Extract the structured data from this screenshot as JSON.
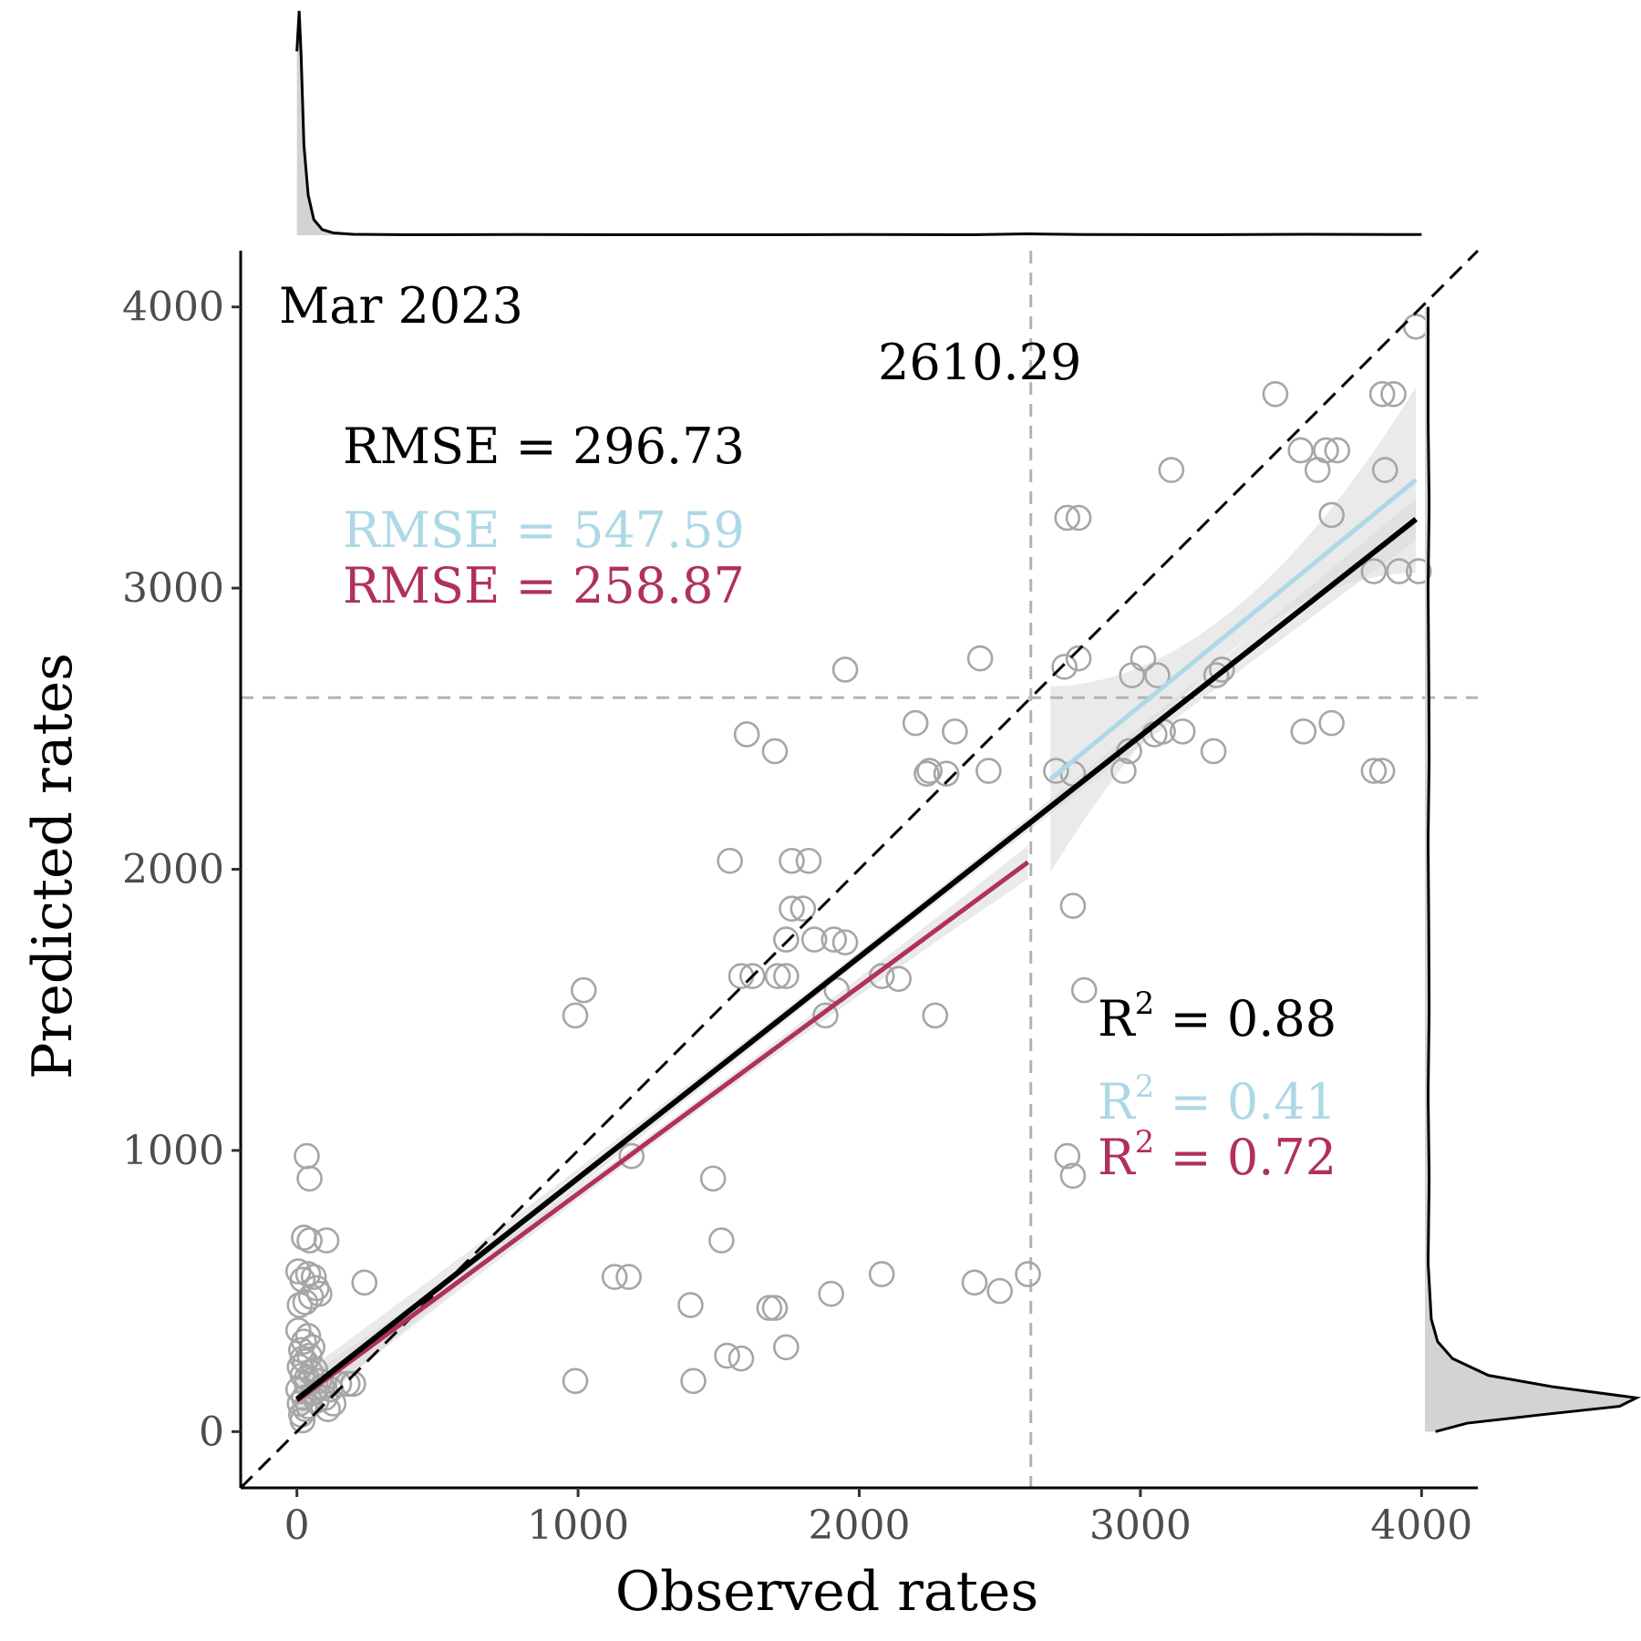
{
  "chart_data": {
    "type": "scatter",
    "period_label": "Mar 2023",
    "xlabel": "Observed rates",
    "ylabel": "Predicted rates",
    "xlim": [
      -200,
      4200
    ],
    "ylim": [
      -200,
      4200
    ],
    "xticks": [
      0,
      1000,
      2000,
      3000,
      4000
    ],
    "yticks": [
      0,
      1000,
      2000,
      3000,
      4000
    ],
    "threshold": {
      "value": 2610.29,
      "label": "2610.29"
    },
    "identity_line": {
      "style": "dashed",
      "color": "#000000"
    },
    "fits": [
      {
        "color": "#000000",
        "rmse_label": "RMSE = 296.73",
        "r2_label": "R",
        "r2_value": " = 0.88",
        "x": [
          0,
          3980
        ],
        "y": [
          115,
          3245
        ]
      },
      {
        "color": "#add8e6",
        "rmse_label": "RMSE = 547.59",
        "r2_label": "R",
        "r2_value": " = 0.41",
        "x": [
          2680,
          3980
        ],
        "y": [
          2320,
          3385
        ]
      },
      {
        "color": "#b03060",
        "rmse_label": "RMSE = 258.87",
        "r2_label": "R",
        "r2_value": " = 0.72",
        "x": [
          0,
          2600
        ],
        "y": [
          110,
          2025
        ]
      }
    ],
    "r2_superscript": "2",
    "grid": false,
    "marginal_density": {
      "top": "observed",
      "right": "predicted"
    },
    "point_color": "#a6a6a6",
    "points": [
      [
        20,
        40
      ],
      [
        15,
        60
      ],
      [
        30,
        80
      ],
      [
        10,
        100
      ],
      [
        25,
        120
      ],
      [
        40,
        90
      ],
      [
        5,
        150
      ],
      [
        35,
        170
      ],
      [
        20,
        200
      ],
      [
        50,
        210
      ],
      [
        10,
        230
      ],
      [
        30,
        250
      ],
      [
        45,
        270
      ],
      [
        15,
        290
      ],
      [
        60,
        140
      ],
      [
        70,
        110
      ],
      [
        80,
        180
      ],
      [
        55,
        300
      ],
      [
        25,
        320
      ],
      [
        40,
        340
      ],
      [
        5,
        360
      ],
      [
        35,
        190
      ],
      [
        65,
        220
      ],
      [
        20,
        260
      ],
      [
        90,
        160
      ],
      [
        100,
        120
      ],
      [
        110,
        80
      ],
      [
        120,
        150
      ],
      [
        130,
        100
      ],
      [
        150,
        170
      ],
      [
        180,
        170
      ],
      [
        200,
        170
      ],
      [
        10,
        450
      ],
      [
        30,
        460
      ],
      [
        50,
        480
      ],
      [
        70,
        510
      ],
      [
        20,
        540
      ],
      [
        40,
        560
      ],
      [
        60,
        550
      ],
      [
        80,
        490
      ],
      [
        5,
        570
      ],
      [
        25,
        690
      ],
      [
        45,
        680
      ],
      [
        105,
        680
      ],
      [
        35,
        980
      ],
      [
        45,
        900
      ],
      [
        240,
        530
      ],
      [
        990,
        180
      ],
      [
        1410,
        180
      ],
      [
        1530,
        270
      ],
      [
        1580,
        260
      ],
      [
        1740,
        300
      ],
      [
        1400,
        450
      ],
      [
        1680,
        440
      ],
      [
        1700,
        440
      ],
      [
        1900,
        490
      ],
      [
        1130,
        550
      ],
      [
        1180,
        550
      ],
      [
        1510,
        680
      ],
      [
        1480,
        900
      ],
      [
        2080,
        560
      ],
      [
        2410,
        530
      ],
      [
        2500,
        500
      ],
      [
        2600,
        560
      ],
      [
        1190,
        980
      ],
      [
        990,
        1480
      ],
      [
        1020,
        1570
      ],
      [
        1880,
        1480
      ],
      [
        1580,
        1620
      ],
      [
        1620,
        1620
      ],
      [
        1710,
        1620
      ],
      [
        1740,
        1620
      ],
      [
        1920,
        1570
      ],
      [
        2080,
        1620
      ],
      [
        2140,
        1610
      ],
      [
        2270,
        1480
      ],
      [
        1740,
        1750
      ],
      [
        1840,
        1750
      ],
      [
        1910,
        1750
      ],
      [
        1950,
        1740
      ],
      [
        1760,
        1860
      ],
      [
        1800,
        1860
      ],
      [
        1540,
        2030
      ],
      [
        1760,
        2030
      ],
      [
        1820,
        2030
      ],
      [
        1600,
        2480
      ],
      [
        1700,
        2420
      ],
      [
        1950,
        2710
      ],
      [
        2200,
        2520
      ],
      [
        2240,
        2340
      ],
      [
        2250,
        2350
      ],
      [
        2310,
        2340
      ],
      [
        2340,
        2490
      ],
      [
        2460,
        2350
      ],
      [
        2430,
        2750
      ],
      [
        2700,
        2350
      ],
      [
        2760,
        2340
      ],
      [
        2730,
        2720
      ],
      [
        2780,
        2750
      ],
      [
        2970,
        2690
      ],
      [
        3010,
        2750
      ],
      [
        2940,
        2350
      ],
      [
        2960,
        2420
      ],
      [
        3050,
        2480
      ],
      [
        3080,
        2490
      ],
      [
        3060,
        2690
      ],
      [
        3150,
        2490
      ],
      [
        3270,
        2690
      ],
      [
        3290,
        2710
      ],
      [
        3260,
        2420
      ],
      [
        2740,
        3250
      ],
      [
        2780,
        3250
      ],
      [
        3110,
        3420
      ],
      [
        3480,
        3690
      ],
      [
        3570,
        3490
      ],
      [
        3630,
        3420
      ],
      [
        3660,
        3490
      ],
      [
        3700,
        3490
      ],
      [
        3680,
        3260
      ],
      [
        3580,
        2490
      ],
      [
        3680,
        2520
      ],
      [
        3830,
        2350
      ],
      [
        3860,
        2350
      ],
      [
        3830,
        3060
      ],
      [
        3920,
        3060
      ],
      [
        3990,
        3060
      ],
      [
        3870,
        3420
      ],
      [
        3860,
        3690
      ],
      [
        3900,
        3690
      ],
      [
        3980,
        3930
      ],
      [
        2760,
        1870
      ],
      [
        2800,
        1570
      ],
      [
        2740,
        980
      ],
      [
        2760,
        910
      ]
    ],
    "density_top": {
      "x": [
        0,
        8,
        15,
        25,
        40,
        60,
        90,
        130,
        200,
        400,
        800,
        1200,
        1600,
        2000,
        2400,
        2600,
        2800,
        3200,
        3600,
        3900,
        4000
      ],
      "d": [
        0.82,
        1.0,
        0.8,
        0.4,
        0.18,
        0.07,
        0.025,
        0.01,
        0.004,
        0.002,
        0.003,
        0.002,
        0.002,
        0.003,
        0.002,
        0.006,
        0.003,
        0.002,
        0.004,
        0.003,
        0.003
      ]
    },
    "density_right": {
      "y": [
        0,
        30,
        60,
        90,
        120,
        160,
        200,
        260,
        320,
        400,
        600,
        900,
        1200,
        1500,
        1800,
        2100,
        2400,
        2700,
        3000,
        3300,
        3600,
        3900,
        4000
      ],
      "d": [
        0.05,
        0.2,
        0.55,
        0.92,
        1.0,
        0.6,
        0.3,
        0.13,
        0.06,
        0.03,
        0.015,
        0.02,
        0.015,
        0.02,
        0.018,
        0.015,
        0.02,
        0.018,
        0.015,
        0.02,
        0.015,
        0.015,
        0.015
      ]
    }
  }
}
